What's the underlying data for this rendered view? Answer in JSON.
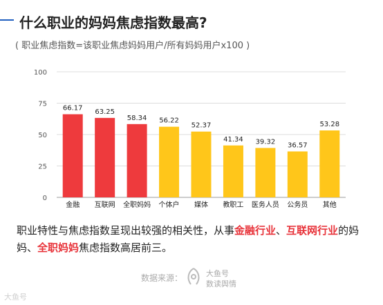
{
  "title": "什么职业的妈妈焦虑指数最高?",
  "subtitle": "( 职业焦虑指数=该职业焦虑妈妈用户/所有妈妈用户x100 )",
  "colors": {
    "accent": "#1f5fbf",
    "red": "#ee3a3d",
    "yellow": "#ffc61a",
    "highlight": "#e8333a"
  },
  "chart_data": {
    "type": "bar",
    "categories": [
      "金融",
      "互联网",
      "全职妈妈",
      "个体户",
      "媒体",
      "教职工",
      "医务人员",
      "公务员",
      "其他"
    ],
    "values": [
      66.17,
      63.25,
      58.34,
      56.22,
      52.37,
      41.34,
      39.32,
      36.57,
      53.28
    ],
    "value_labels": [
      "66.17",
      "63.25",
      "58.34",
      "56.22",
      "52.37",
      "41.34",
      "39.32",
      "36.57",
      "53.28"
    ],
    "bar_colors": [
      "red",
      "red",
      "red",
      "yellow",
      "yellow",
      "yellow",
      "yellow",
      "yellow",
      "yellow"
    ],
    "yticks": [
      "0",
      "25",
      "50",
      "75",
      "100"
    ],
    "ylim": [
      0,
      100
    ],
    "grid": true,
    "legend": "none",
    "title": "",
    "xlabel": "",
    "ylabel": ""
  },
  "summary": {
    "part1": "职业特性与焦虑指数呈现出较强的相关性，从事",
    "hl1": "金融行业",
    "sep1": "、",
    "hl2": "互联网行业",
    "part2": "的妈妈、",
    "hl3": "全职妈妈",
    "part3": "焦虑指数高居前三。"
  },
  "source_label": "数据来源：",
  "brand": {
    "line1": "大鱼号",
    "line2": "数读舆情",
    "icon": "fish-logo-icon"
  },
  "watermark": "大鱼号"
}
